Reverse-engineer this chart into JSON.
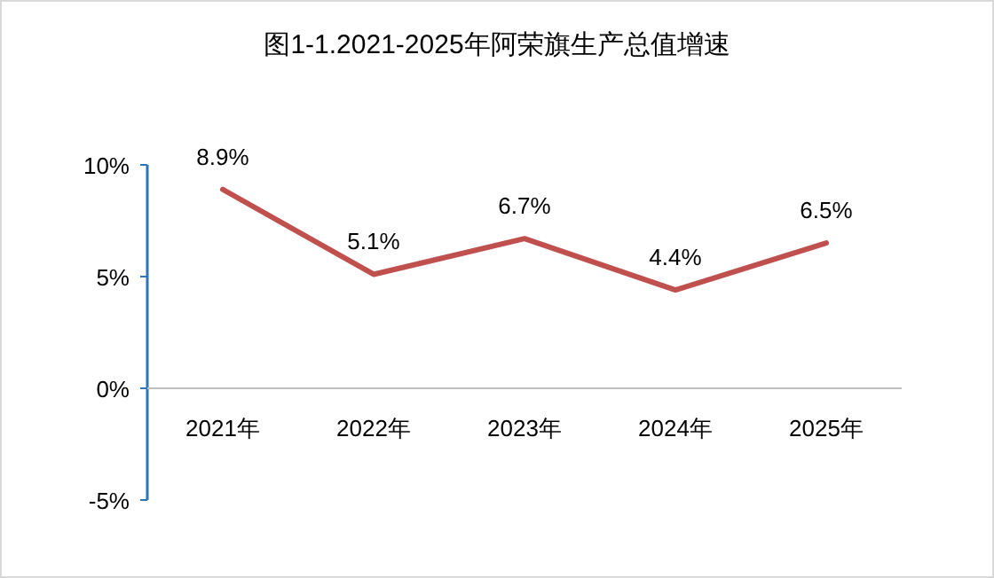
{
  "chart_data": {
    "type": "line",
    "title": "图1-1.2021-2025年阿荣旗生产总值增速",
    "categories": [
      "2021年",
      "2022年",
      "2023年",
      "2024年",
      "2025年"
    ],
    "series": [
      {
        "color": "#c0504d",
        "values": [
          8.9,
          5.1,
          6.7,
          4.4,
          6.5
        ],
        "value_labels": [
          "8.9%",
          "5.1%",
          "6.7%",
          "4.4%",
          "6.5%"
        ]
      }
    ],
    "ylim": [
      -5,
      10
    ],
    "yticks": [
      {
        "value": -5,
        "label": "-5%"
      },
      {
        "value": 0,
        "label": "0%"
      },
      {
        "value": 5,
        "label": "5%"
      },
      {
        "value": 10,
        "label": "10%"
      }
    ],
    "grid": false
  }
}
